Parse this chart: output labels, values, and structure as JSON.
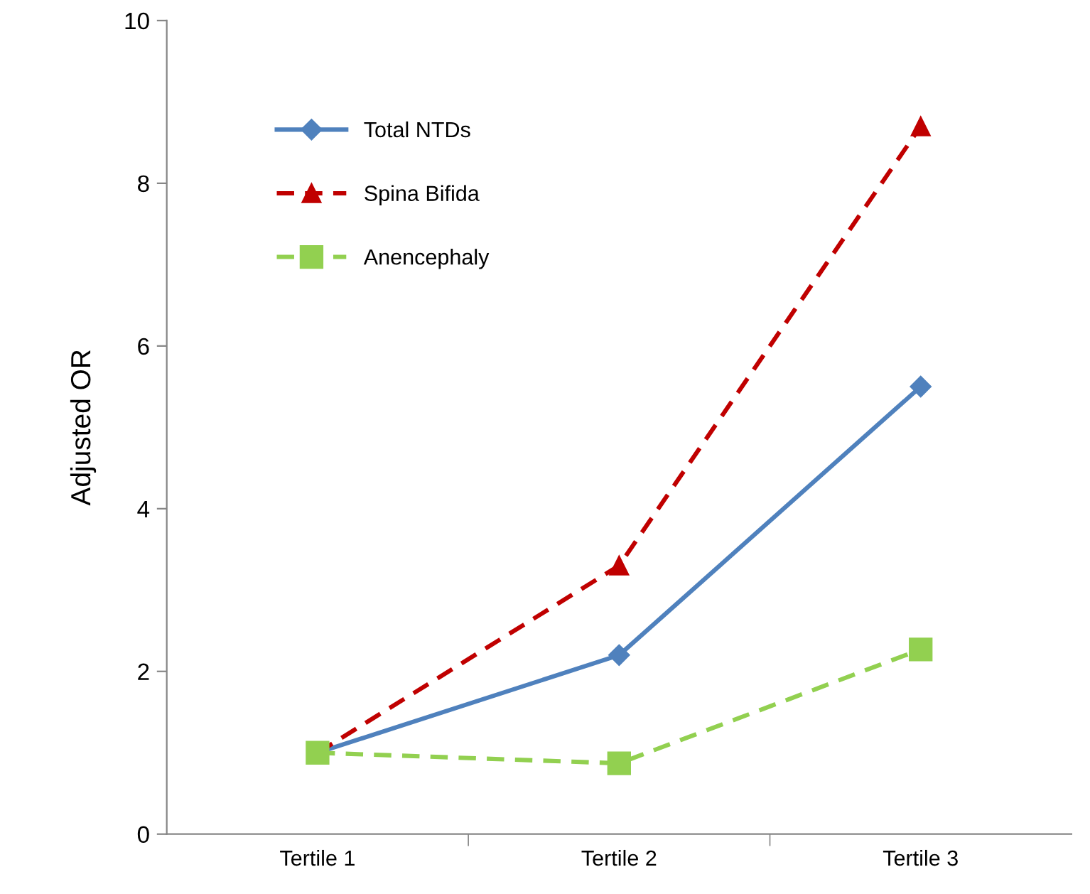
{
  "chart_data": {
    "type": "line",
    "ylabel": "Adjusted OR",
    "categories": [
      "Tertile 1",
      "Tertile 2",
      "Tertile 3"
    ],
    "series": [
      {
        "name": "Total NTDs",
        "color": "#4f81bd",
        "values": [
          1.0,
          2.2,
          5.5
        ],
        "marker": "diamond",
        "line_style": "solid"
      },
      {
        "name": "Spina Bifida",
        "color": "#c00000",
        "values": [
          1.0,
          3.3,
          8.7
        ],
        "marker": "triangle",
        "line_style": "dashed"
      },
      {
        "name": "Anencephaly",
        "color": "#92d050",
        "values": [
          1.0,
          0.87,
          2.27
        ],
        "marker": "square",
        "line_style": "dashed"
      }
    ],
    "ylim": [
      0,
      10
    ],
    "yticks": [
      0,
      2,
      4,
      6,
      8,
      10
    ],
    "grid": false,
    "legend": "top left"
  }
}
